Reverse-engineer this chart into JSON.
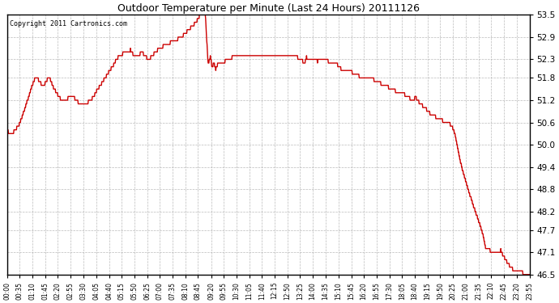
{
  "title": "Outdoor Temperature per Minute (Last 24 Hours) 20111126",
  "copyright_text": "Copyright 2011 Cartronics.com",
  "background_color": "#ffffff",
  "plot_background": "#ffffff",
  "line_color": "#cc0000",
  "line_width": 1.0,
  "ylim": [
    46.5,
    53.5
  ],
  "yticks": [
    46.5,
    47.1,
    47.7,
    48.2,
    48.8,
    49.4,
    50.0,
    50.6,
    51.2,
    51.8,
    52.3,
    52.9,
    53.5
  ],
  "grid_color": "#aaaaaa",
  "x_tick_labels": [
    "00:00",
    "00:35",
    "01:10",
    "01:45",
    "02:20",
    "02:55",
    "03:30",
    "04:05",
    "04:40",
    "05:15",
    "05:50",
    "06:25",
    "07:00",
    "07:35",
    "08:10",
    "08:45",
    "09:20",
    "09:55",
    "10:30",
    "11:05",
    "11:40",
    "12:15",
    "12:50",
    "13:25",
    "14:00",
    "14:35",
    "15:10",
    "15:45",
    "16:20",
    "16:55",
    "17:30",
    "18:05",
    "18:40",
    "19:15",
    "19:50",
    "20:25",
    "21:00",
    "21:35",
    "22:10",
    "22:45",
    "23:20",
    "23:55"
  ]
}
